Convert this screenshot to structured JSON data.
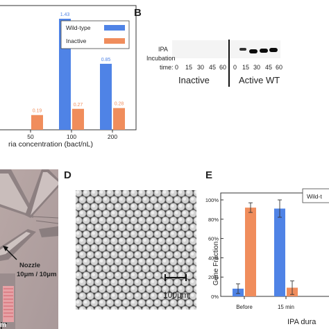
{
  "panels": {
    "b": "B",
    "d": "D",
    "e": "E"
  },
  "chart_data": [
    {
      "type": "bar",
      "categories": [
        "",
        "50",
        "100",
        "200"
      ],
      "series": [
        {
          "name": "Wild-type",
          "values": [
            1.46,
            null,
            1.43,
            0.85
          ],
          "color": "#4f83e6"
        },
        {
          "name": "Inactive",
          "values": [
            null,
            0.19,
            0.27,
            0.28
          ],
          "color": "#f08d5c"
        }
      ],
      "value_labels": {
        "wild_type": [
          "1.46",
          "",
          "1.43",
          "0.85"
        ],
        "inactive": [
          "",
          "0.19",
          "0.27",
          "0.28"
        ]
      },
      "xlabel": "ria concentration (bact/nL)",
      "ylim": [
        0,
        1.6
      ],
      "legend": "top-right"
    },
    {
      "type": "bar",
      "categories": [
        "Before",
        "15 min"
      ],
      "series": [
        {
          "name": "Wild-t",
          "values": [
            8,
            91
          ],
          "errors": [
            5,
            9
          ],
          "color": "#4f83e6"
        },
        {
          "name": "",
          "values": [
            92,
            9
          ],
          "errors": [
            5,
            7
          ],
          "color": "#f08d5c"
        }
      ],
      "ylabel": "Gene Fraction",
      "xlabel": "IPA dura",
      "yticks": [
        "0%",
        "20%",
        "40%",
        "60%",
        "80%",
        "100%"
      ],
      "ylim": [
        0,
        100
      ],
      "legend": "top-right"
    }
  ],
  "gel": {
    "row_label_1": "IPA",
    "row_label_2": "Incubation",
    "row_label_3": "time:",
    "times_inactive": [
      "0",
      "15",
      "30",
      "45",
      "60"
    ],
    "times_active": [
      "0",
      "15",
      "30",
      "45",
      "60"
    ],
    "group_inactive": "Inactive",
    "group_active": "Active WT"
  },
  "panel_c": {
    "nozzle_label": "Nozzle",
    "nozzle_size": "10μm / 10μm",
    "bottom_label": "m"
  },
  "panel_d": {
    "scale_label": "100μm"
  }
}
